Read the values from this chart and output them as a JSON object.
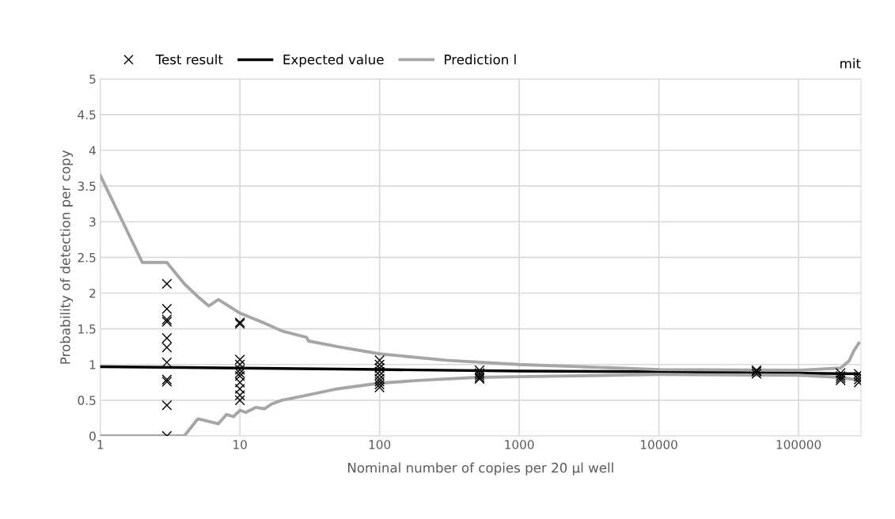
{
  "chart_data": {
    "type": "line",
    "xlabel": "Nominal number of copies per 20 µl well",
    "ylabel": "Probability of detection per copy",
    "log": "x",
    "xlim": [
      1,
      280000
    ],
    "xticks": [
      1,
      10,
      100,
      1000,
      10000,
      100000
    ],
    "ylim": [
      0,
      5
    ],
    "yticks": [
      0,
      0.5,
      1,
      1.5,
      2,
      2.5,
      3,
      3.5,
      4,
      4.5,
      5
    ],
    "grid": true,
    "legend": "top",
    "annotations": [
      "mit"
    ],
    "series": [
      {
        "name": "Test result",
        "type": "scatter",
        "marker": "cross",
        "color": "#000000",
        "x": [
          3,
          3,
          3,
          3,
          3,
          3,
          3,
          3,
          3,
          3,
          3,
          10,
          10,
          10,
          10,
          10,
          10,
          10,
          10,
          10,
          10,
          10,
          100,
          100,
          100,
          100,
          100,
          100,
          100,
          100,
          100,
          520,
          520,
          520,
          520,
          520,
          50000,
          50000,
          50000,
          200000,
          200000,
          200000,
          200000,
          270000,
          270000,
          270000,
          270000
        ],
        "values": [
          2.13,
          1.78,
          1.63,
          1.6,
          1.37,
          1.24,
          1.03,
          0.79,
          0.76,
          0.43,
          0,
          1.59,
          1.57,
          1.07,
          1.0,
          0.93,
          0.88,
          0.84,
          0.75,
          0.66,
          0.57,
          0.5,
          1.06,
          1.0,
          0.95,
          0.9,
          0.85,
          0.8,
          0.76,
          0.72,
          0.68,
          0.92,
          0.88,
          0.85,
          0.82,
          0.8,
          0.92,
          0.9,
          0.87,
          0.88,
          0.84,
          0.81,
          0.78,
          0.87,
          0.83,
          0.79,
          0.75
        ]
      },
      {
        "name": "Expected value",
        "color": "#000000",
        "x": [
          1,
          10,
          100,
          1000,
          10000,
          100000,
          270000
        ],
        "values": [
          0.97,
          0.95,
          0.93,
          0.91,
          0.9,
          0.88,
          0.87
        ]
      },
      {
        "name": "Prediction l",
        "color": "#a6a6a6",
        "x": [
          1,
          2,
          3,
          4,
          5,
          6,
          7,
          8,
          10,
          15,
          20,
          30,
          31,
          50,
          100,
          300,
          1000,
          10000,
          100000,
          200000,
          230000,
          250000,
          270000
        ],
        "values": [
          3.65,
          2.43,
          2.43,
          2.13,
          1.95,
          1.82,
          1.91,
          1.84,
          1.72,
          1.58,
          1.47,
          1.38,
          1.33,
          1.25,
          1.15,
          1.06,
          1.0,
          0.93,
          0.92,
          0.95,
          1.05,
          1.2,
          1.3
        ]
      },
      {
        "color": "#a6a6a6",
        "x": [
          1,
          3,
          4,
          5,
          7,
          8,
          9,
          10,
          11,
          13,
          15,
          17,
          20,
          30,
          50,
          100,
          200,
          500,
          1000,
          10000,
          100000,
          200000,
          270000
        ],
        "values": [
          0,
          0,
          0,
          0.24,
          0.17,
          0.3,
          0.27,
          0.36,
          0.33,
          0.4,
          0.38,
          0.45,
          0.5,
          0.57,
          0.66,
          0.74,
          0.78,
          0.82,
          0.83,
          0.86,
          0.85,
          0.82,
          0.78
        ]
      }
    ]
  }
}
